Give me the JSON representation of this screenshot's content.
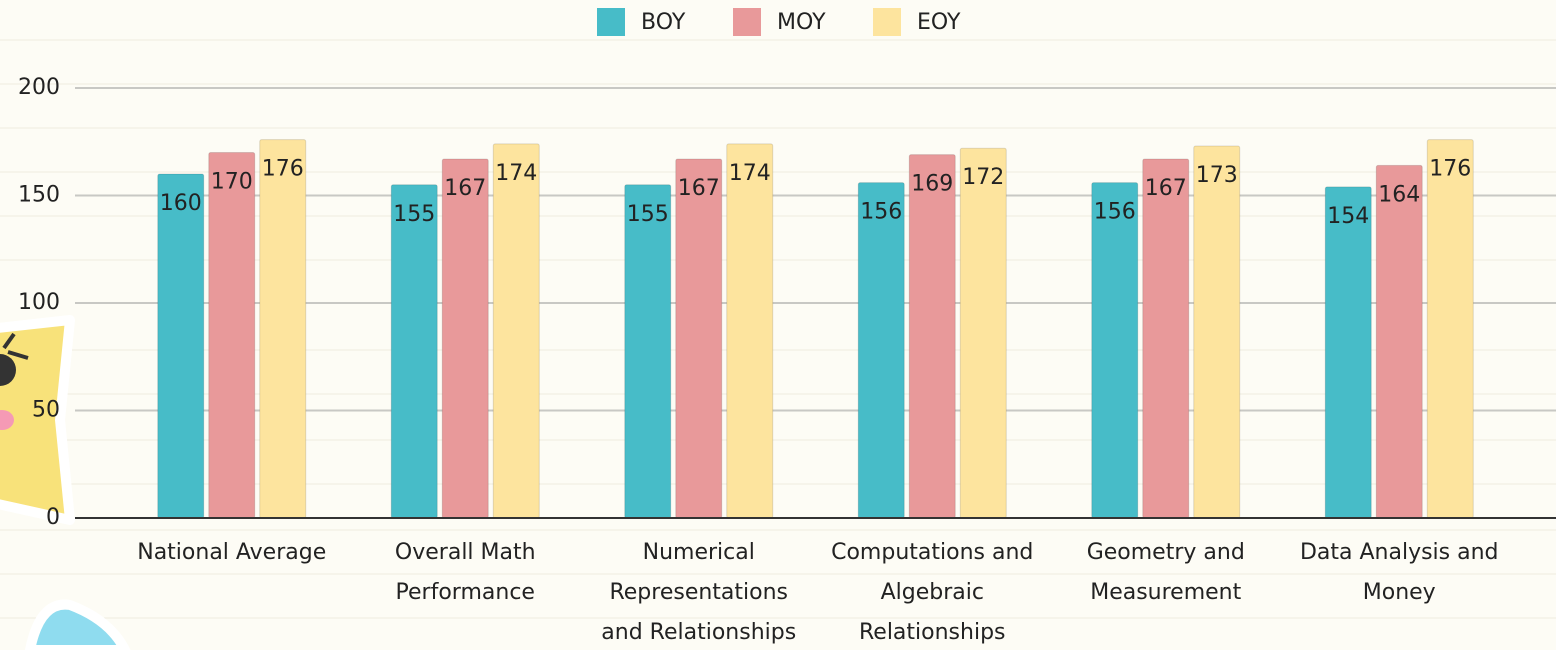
{
  "chart_data": {
    "type": "bar",
    "categories": [
      [
        "National Average"
      ],
      [
        "Overall Math",
        "Performance"
      ],
      [
        "Numerical",
        "Representations",
        "and Relationships"
      ],
      [
        "Computations and",
        "Algebraic",
        "Relationships"
      ],
      [
        "Geometry and",
        "Measurement"
      ],
      [
        "Data Analysis and",
        "Money"
      ]
    ],
    "series": [
      {
        "name": "BOY",
        "color": "#47bcc8",
        "values": [
          160,
          155,
          155,
          156,
          156,
          154
        ]
      },
      {
        "name": "MOY",
        "color": "#e8999a",
        "values": [
          170,
          167,
          167,
          169,
          167,
          164
        ]
      },
      {
        "name": "EOY",
        "color": "#fde49e",
        "values": [
          176,
          174,
          174,
          172,
          173,
          176
        ]
      }
    ],
    "ylim": [
      0,
      200
    ],
    "yticks": [
      0,
      50,
      100,
      150,
      200
    ],
    "grid": true,
    "legend": "top"
  }
}
